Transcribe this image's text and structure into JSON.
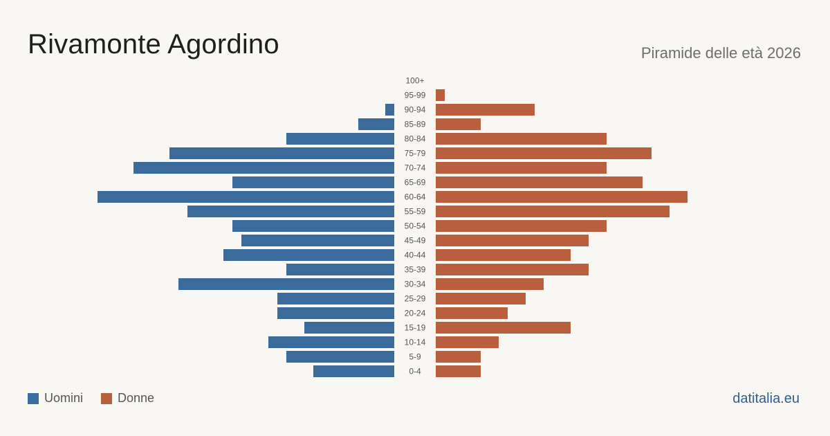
{
  "header": {
    "title": "Rivamonte Agordino",
    "subtitle": "Piramide delle età 2026"
  },
  "footer": {
    "brand": "datitalia.eu"
  },
  "colors": {
    "men": "#3b6a9c",
    "women": "#b95f3e",
    "age_label": "#555555"
  },
  "legend": {
    "men_label": "Uomini",
    "women_label": "Donne"
  },
  "chart_data": {
    "type": "bar",
    "orientation": "horizontal-pyramid",
    "categories": [
      "100+",
      "95-99",
      "90-94",
      "85-89",
      "80-84",
      "75-79",
      "70-74",
      "65-69",
      "60-64",
      "55-59",
      "50-54",
      "45-49",
      "40-44",
      "35-39",
      "30-34",
      "25-29",
      "20-24",
      "15-19",
      "10-14",
      "5-9",
      "0-4"
    ],
    "series": [
      {
        "name": "Uomini",
        "values": [
          0,
          0,
          1,
          4,
          12,
          25,
          29,
          18,
          33,
          23,
          18,
          17,
          19,
          12,
          24,
          13,
          13,
          10,
          14,
          12,
          9
        ]
      },
      {
        "name": "Donne",
        "values": [
          0,
          1,
          11,
          5,
          19,
          24,
          19,
          23,
          28,
          26,
          19,
          17,
          15,
          17,
          12,
          10,
          8,
          15,
          7,
          5,
          5
        ]
      }
    ],
    "grid": false,
    "legend_position": "bottom-left"
  }
}
